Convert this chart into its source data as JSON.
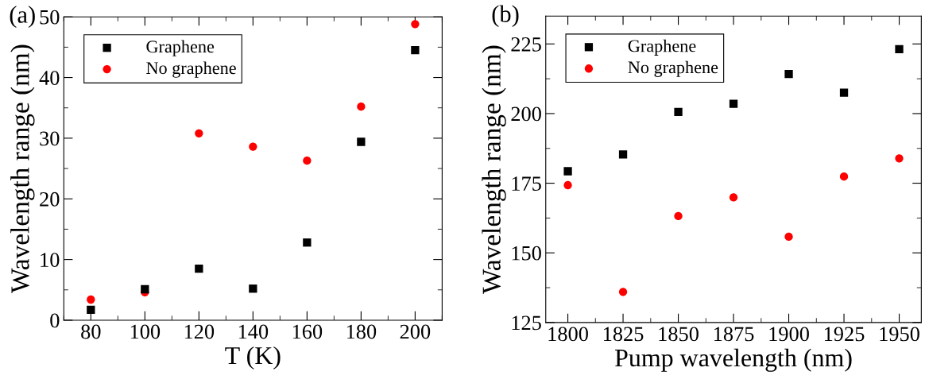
{
  "chart_data": [
    {
      "type": "scatter",
      "annotations": [
        "(a)"
      ],
      "xlabel": "T (K)",
      "ylabel": "Wavelength range (nm)",
      "x": [
        80,
        100,
        120,
        140,
        160,
        180,
        200
      ],
      "series": [
        {
          "name": "Graphene",
          "color": "#000000",
          "marker": "square",
          "values": [
            1.7,
            5.1,
            8.5,
            5.2,
            12.8,
            29.4,
            44.5
          ]
        },
        {
          "name": "No graphene",
          "color": "#ff0000",
          "marker": "circle",
          "values": [
            3.4,
            4.6,
            30.8,
            28.6,
            26.3,
            35.2,
            48.8
          ]
        }
      ],
      "xlim": [
        70,
        210
      ],
      "xticks": [
        80,
        100,
        120,
        140,
        160,
        180,
        200
      ],
      "ylim": [
        0,
        50
      ],
      "yticks": [
        0,
        10,
        20,
        30,
        40,
        50
      ],
      "legend": "top left"
    },
    {
      "type": "scatter",
      "annotations": [
        "(b)"
      ],
      "xlabel": "Pump wavelength (nm)",
      "ylabel": "Wavelength range (nm)",
      "x": [
        1800,
        1825,
        1850,
        1875,
        1900,
        1925,
        1950
      ],
      "series": [
        {
          "name": "Graphene",
          "color": "#000000",
          "marker": "square",
          "values": [
            179.3,
            185.3,
            200.6,
            203.5,
            214.2,
            207.5,
            223.1
          ]
        },
        {
          "name": "No graphene",
          "color": "#ff0000",
          "marker": "circle",
          "values": [
            174.3,
            136.0,
            163.2,
            169.9,
            155.8,
            177.4,
            183.9
          ]
        }
      ],
      "xlim": [
        1790,
        1960
      ],
      "xticks": [
        1800,
        1825,
        1850,
        1875,
        1900,
        1925,
        1950
      ],
      "ylim": [
        125,
        235
      ],
      "yticks": [
        125,
        150,
        175,
        200,
        225
      ],
      "legend": "top left"
    }
  ]
}
